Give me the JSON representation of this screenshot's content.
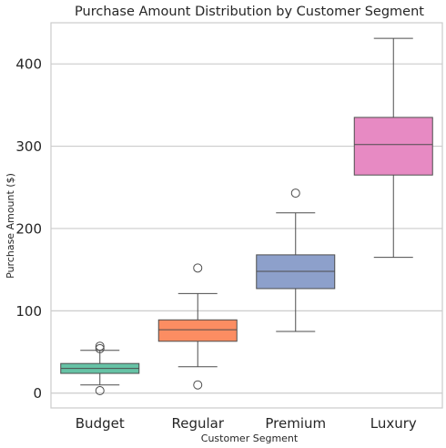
{
  "chart_data": {
    "type": "boxplot",
    "title": "Purchase Amount Distribution by Customer Segment",
    "xlabel": "Customer Segment",
    "ylabel": "Purchase Amount ($)",
    "ylim": [
      -18,
      450
    ],
    "yticks": [
      0,
      100,
      200,
      300,
      400
    ],
    "grid": "horizontal",
    "categories": [
      "Budget",
      "Regular",
      "Premium",
      "Luxury"
    ],
    "colors": [
      "#66c2a5",
      "#fc8d62",
      "#8da0cb",
      "#e78ac3"
    ],
    "boxes": [
      {
        "category": "Budget",
        "whisker_low": 10,
        "q1": 24,
        "median": 30,
        "q3": 36,
        "whisker_high": 52,
        "outliers": [
          3,
          54,
          57
        ]
      },
      {
        "category": "Regular",
        "whisker_low": 32,
        "q1": 63,
        "median": 77,
        "q3": 89,
        "whisker_high": 121,
        "outliers": [
          10,
          152
        ]
      },
      {
        "category": "Premium",
        "whisker_low": 75,
        "q1": 127,
        "median": 148,
        "q3": 168,
        "whisker_high": 219,
        "outliers": [
          243
        ]
      },
      {
        "category": "Luxury",
        "whisker_low": 165,
        "q1": 265,
        "median": 302,
        "q3": 335,
        "whisker_high": 431,
        "outliers": []
      }
    ]
  }
}
